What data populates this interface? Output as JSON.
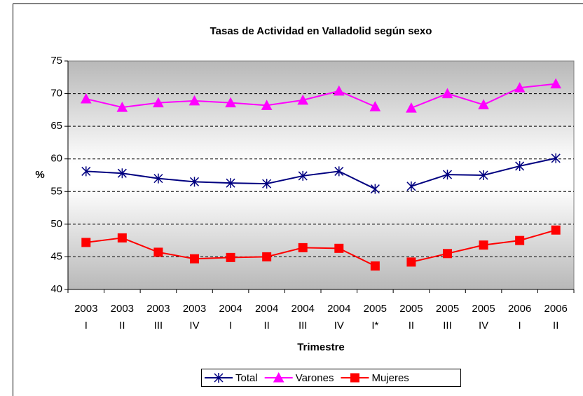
{
  "chart_data": {
    "type": "line",
    "title": "Tasas de Actividad en Valladolid según sexo",
    "x_label": "Trimestre",
    "y_label": "%",
    "categories": [
      [
        "2003",
        "I"
      ],
      [
        "2003",
        "II"
      ],
      [
        "2003",
        "III"
      ],
      [
        "2003",
        "IV"
      ],
      [
        "2004",
        "I"
      ],
      [
        "2004",
        "II"
      ],
      [
        "2004",
        "III"
      ],
      [
        "2004",
        "IV"
      ],
      [
        "2005",
        "I*"
      ],
      [
        "2005",
        "II"
      ],
      [
        "2005",
        "III"
      ],
      [
        "2005",
        "IV"
      ],
      [
        "2006",
        "I"
      ],
      [
        "2006",
        "II"
      ]
    ],
    "breaks": [
      8
    ],
    "series": [
      {
        "name": "Total",
        "color": "#000080",
        "marker": "star",
        "values": [
          58.1,
          57.8,
          57.0,
          56.5,
          56.3,
          56.2,
          57.4,
          58.1,
          55.4,
          55.8,
          57.6,
          57.5,
          58.9,
          60.1
        ]
      },
      {
        "name": "Varones",
        "color": "#ff00ff",
        "marker": "triangle",
        "values": [
          69.2,
          67.9,
          68.6,
          68.9,
          68.6,
          68.2,
          69.0,
          70.4,
          68.0,
          67.8,
          70.0,
          68.3,
          70.9,
          71.5
        ]
      },
      {
        "name": "Mujeres",
        "color": "#ff0000",
        "marker": "square",
        "values": [
          47.2,
          47.9,
          45.7,
          44.7,
          44.9,
          45.0,
          46.4,
          46.3,
          43.6,
          44.2,
          45.5,
          46.8,
          47.5,
          49.1
        ]
      }
    ],
    "ylim": [
      40,
      75
    ],
    "yticks": [
      40,
      45,
      50,
      55,
      60,
      65,
      70,
      75
    ],
    "grid": true,
    "legend": "bottom"
  }
}
